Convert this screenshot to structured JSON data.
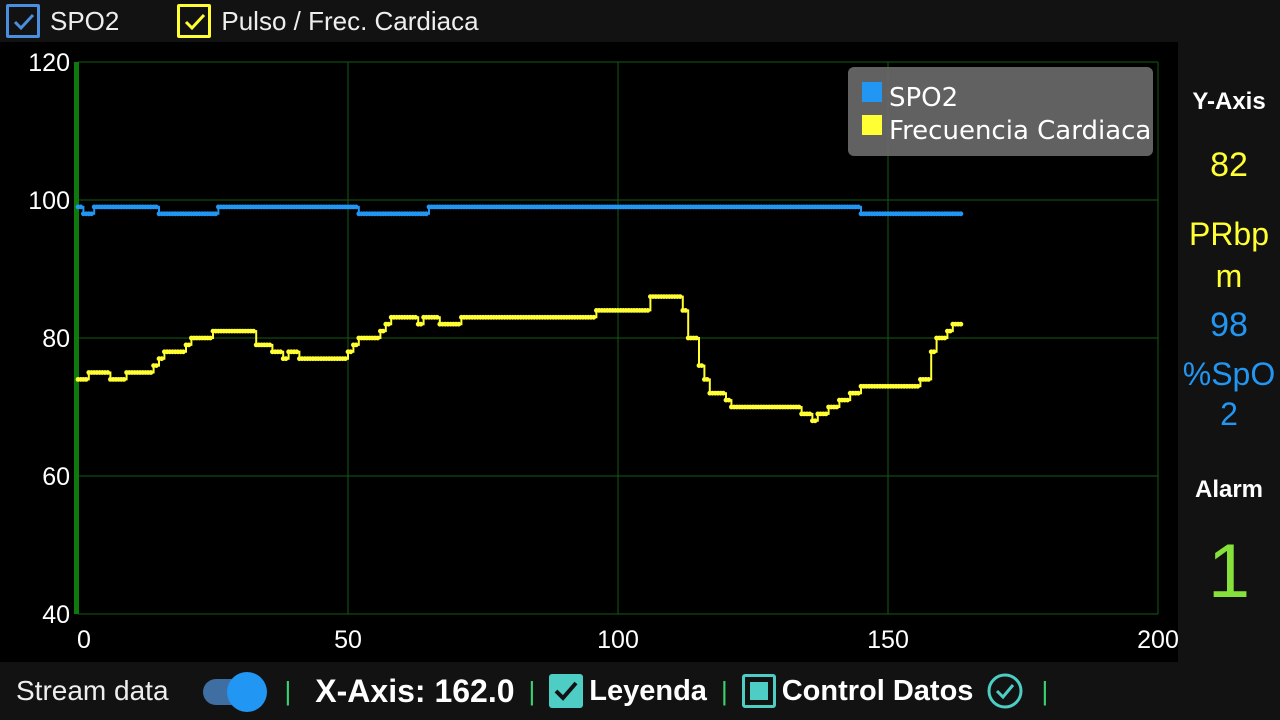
{
  "top_checkboxes": [
    {
      "label": "SPO2",
      "checked": true,
      "color": "#4a9ae8"
    },
    {
      "label": "Pulso / Frec. Cardiaca",
      "checked": true,
      "color": "#ffff33"
    }
  ],
  "legend": {
    "items": [
      {
        "label": "SPO2",
        "color": "#2196f3"
      },
      {
        "label": "Frecuencia Cardiaca",
        "color": "#ffff33"
      }
    ]
  },
  "side_panel": {
    "y_axis_label": "Y-Axis",
    "pr_value": "82",
    "pr_unit_line1": "PRbp",
    "pr_unit_line2": "m",
    "spo2_value": "98",
    "spo2_unit_line1": "%SpO",
    "spo2_unit_line2": "2",
    "alarm_label": "Alarm",
    "alarm_value": "1"
  },
  "bottom_bar": {
    "stream_label": "Stream data",
    "stream_on": true,
    "x_axis_readout": "X-Axis: 162.0",
    "legend_toggle": "Leyenda",
    "control_toggle": "Control Datos",
    "separator": "|"
  },
  "chart_data": {
    "type": "line",
    "xlim": [
      0,
      200
    ],
    "ylim": [
      40,
      120
    ],
    "x_ticks": [
      0,
      50,
      100,
      150,
      200
    ],
    "y_ticks": [
      40,
      60,
      80,
      100,
      120
    ],
    "grid": true,
    "legend_placement": "top-right",
    "series": [
      {
        "name": "SPO2",
        "color": "#2196f3",
        "steps": [
          [
            0,
            99
          ],
          [
            1,
            98
          ],
          [
            3,
            99
          ],
          [
            15,
            98
          ],
          [
            26,
            99
          ],
          [
            52,
            98
          ],
          [
            65,
            99
          ],
          [
            145,
            98
          ],
          [
            163,
            98
          ]
        ]
      },
      {
        "name": "Frecuencia Cardiaca",
        "color": "#ffff33",
        "steps": [
          [
            0,
            74
          ],
          [
            2,
            75
          ],
          [
            6,
            74
          ],
          [
            9,
            75
          ],
          [
            14,
            76
          ],
          [
            15,
            77
          ],
          [
            16,
            78
          ],
          [
            20,
            79
          ],
          [
            21,
            80
          ],
          [
            25,
            81
          ],
          [
            33,
            79
          ],
          [
            36,
            78
          ],
          [
            38,
            77
          ],
          [
            39,
            78
          ],
          [
            41,
            77
          ],
          [
            50,
            78
          ],
          [
            51,
            79
          ],
          [
            52,
            80
          ],
          [
            56,
            81
          ],
          [
            57,
            82
          ],
          [
            58,
            83
          ],
          [
            63,
            82
          ],
          [
            64,
            83
          ],
          [
            67,
            82
          ],
          [
            71,
            83
          ],
          [
            96,
            84
          ],
          [
            106,
            86
          ],
          [
            112,
            84
          ],
          [
            113,
            80
          ],
          [
            115,
            76
          ],
          [
            116,
            74
          ],
          [
            117,
            72
          ],
          [
            120,
            71
          ],
          [
            121,
            70
          ],
          [
            134,
            69
          ],
          [
            136,
            68
          ],
          [
            137,
            69
          ],
          [
            139,
            70
          ],
          [
            141,
            71
          ],
          [
            143,
            72
          ],
          [
            145,
            73
          ],
          [
            156,
            74
          ],
          [
            158,
            78
          ],
          [
            159,
            80
          ],
          [
            161,
            81
          ],
          [
            162,
            82
          ],
          [
            163,
            82
          ]
        ]
      }
    ]
  }
}
